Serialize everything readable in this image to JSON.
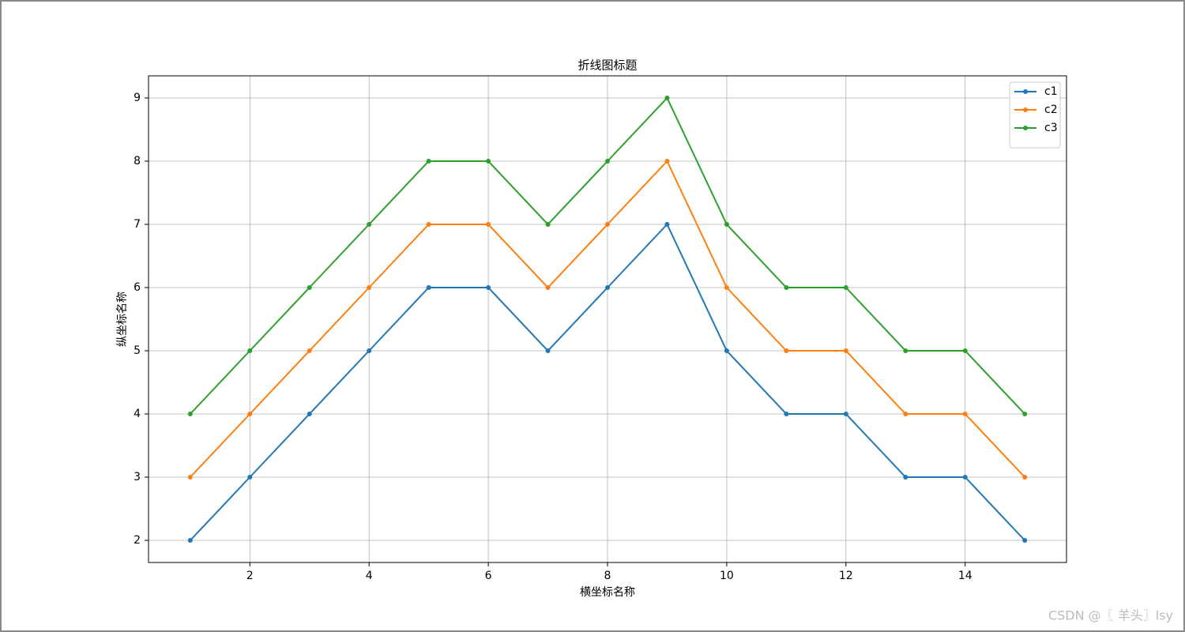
{
  "chart_data": {
    "type": "line",
    "title": "折线图标题",
    "x_label": "横坐标名称",
    "y_label": "纵坐标名称",
    "x": [
      1,
      2,
      3,
      4,
      5,
      6,
      7,
      8,
      9,
      10,
      11,
      12,
      13,
      14,
      15
    ],
    "series": [
      {
        "name": "c1",
        "color": "#1f77b4",
        "values": [
          2,
          3,
          4,
          5,
          6,
          6,
          5,
          6,
          7,
          5,
          4,
          4,
          3,
          3,
          2
        ]
      },
      {
        "name": "c2",
        "color": "#ff7f0e",
        "values": [
          3,
          4,
          5,
          6,
          7,
          7,
          6,
          7,
          8,
          6,
          5,
          5,
          4,
          4,
          3
        ]
      },
      {
        "name": "c3",
        "color": "#2ca02c",
        "values": [
          4,
          5,
          6,
          7,
          8,
          8,
          7,
          8,
          9,
          7,
          6,
          6,
          5,
          5,
          4
        ]
      }
    ],
    "xlim": [
      0.3,
      15.7
    ],
    "ylim": [
      1.65,
      9.35
    ],
    "xticks": [
      2,
      4,
      6,
      8,
      10,
      12,
      14
    ],
    "yticks": [
      2,
      3,
      4,
      5,
      6,
      7,
      8,
      9
    ],
    "grid": true,
    "legend": "upper right"
  },
  "watermark": "CSDN @〖 羊头〗lsy"
}
